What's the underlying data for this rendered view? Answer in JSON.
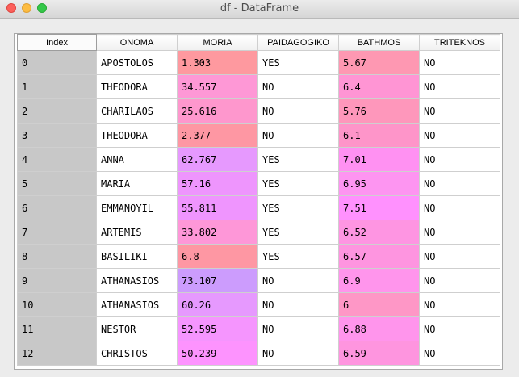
{
  "window": {
    "title": "df - DataFrame"
  },
  "table": {
    "headers": [
      "Index",
      "ONOMA",
      "MORIA",
      "PAIDAGOGIKO",
      "BATHMOS",
      "TRITEKNOS"
    ],
    "rows": [
      {
        "index": "0",
        "onoma": "APOSTOLOS",
        "moria": "1.303",
        "paidagogiko": "YES",
        "bathmos": "5.67",
        "triteknos": "NO",
        "moria_color": "#fe999f",
        "bathmos_color": "#fe98b2"
      },
      {
        "index": "1",
        "onoma": "THEODORA",
        "moria": "34.557",
        "paidagogiko": "NO",
        "bathmos": "6.4",
        "triteknos": "NO",
        "moria_color": "#fe98d6",
        "bathmos_color": "#ff95d4"
      },
      {
        "index": "2",
        "onoma": "CHARILAOS",
        "moria": "25.616",
        "paidagogiko": "NO",
        "bathmos": "5.76",
        "triteknos": "NO",
        "moria_color": "#fe97cd",
        "bathmos_color": "#fe97bb"
      },
      {
        "index": "3",
        "onoma": "THEODORA",
        "moria": "2.377",
        "paidagogiko": "NO",
        "bathmos": "6.1",
        "triteknos": "NO",
        "moria_color": "#fe97a3",
        "bathmos_color": "#fe95c9"
      },
      {
        "index": "4",
        "onoma": "ANNA",
        "moria": "62.767",
        "paidagogiko": "YES",
        "bathmos": "7.01",
        "triteknos": "NO",
        "moria_color": "#e699fe",
        "bathmos_color": "#ff91f2"
      },
      {
        "index": "5",
        "onoma": "MARIA",
        "moria": "57.16",
        "paidagogiko": "YES",
        "bathmos": "6.95",
        "triteknos": "NO",
        "moria_color": "#ee95fd",
        "bathmos_color": "#fd95f1"
      },
      {
        "index": "6",
        "onoma": "EMMANOYIL",
        "moria": "55.811",
        "paidagogiko": "YES",
        "bathmos": "7.51",
        "triteknos": "NO",
        "moria_color": "#ef95fe",
        "bathmos_color": "#ff91fe"
      },
      {
        "index": "7",
        "onoma": "ARTEMIS",
        "moria": "33.802",
        "paidagogiko": "YES",
        "bathmos": "6.52",
        "triteknos": "NO",
        "moria_color": "#fe97d8",
        "bathmos_color": "#fe95e2"
      },
      {
        "index": "8",
        "onoma": "BASILIKI",
        "moria": "6.8",
        "paidagogiko": "YES",
        "bathmos": "6.57",
        "triteknos": "NO",
        "moria_color": "#fe97a3",
        "bathmos_color": "#fe95e0"
      },
      {
        "index": "9",
        "onoma": "ATHANASIOS",
        "moria": "73.107",
        "paidagogiko": "NO",
        "bathmos": "6.9",
        "triteknos": "NO",
        "moria_color": "#cc9cfd",
        "bathmos_color": "#ff95ec"
      },
      {
        "index": "10",
        "onoma": "ATHANASIOS",
        "moria": "60.26",
        "paidagogiko": "NO",
        "bathmos": "6",
        "triteknos": "NO",
        "moria_color": "#e699fe",
        "bathmos_color": "#fe97c6"
      },
      {
        "index": "11",
        "onoma": "NESTOR",
        "moria": "52.595",
        "paidagogiko": "NO",
        "bathmos": "6.88",
        "triteknos": "NO",
        "moria_color": "#f595fe",
        "bathmos_color": "#ff95ec"
      },
      {
        "index": "12",
        "onoma": "CHRISTOS",
        "moria": "50.239",
        "paidagogiko": "NO",
        "bathmos": "6.59",
        "triteknos": "NO",
        "moria_color": "#fd93fe",
        "bathmos_color": "#fe95df"
      }
    ]
  }
}
